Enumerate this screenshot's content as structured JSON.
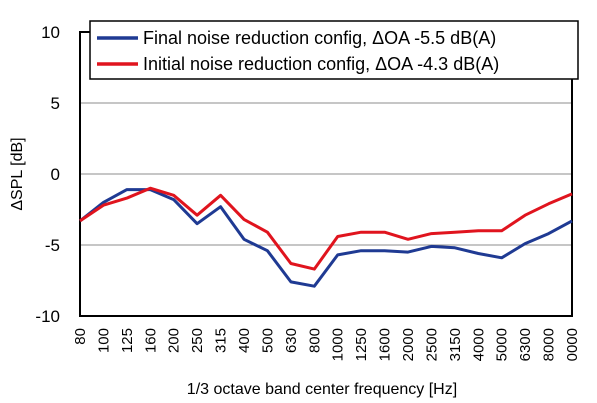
{
  "chart_data": {
    "type": "line",
    "title": "",
    "xlabel": "1/3 octave band center frequency [Hz]",
    "ylabel": "ΔSPL [dB]",
    "ylim": [
      -10,
      10
    ],
    "yticks": [
      -10,
      -5,
      0,
      5,
      10
    ],
    "ytick_labels": [
      "-10",
      "-5",
      "0",
      "5",
      "10"
    ],
    "grid": "horizontal",
    "legend_position": "top-right",
    "categories": [
      "80",
      "100",
      "125",
      "160",
      "200",
      "250",
      "315",
      "400",
      "500",
      "630",
      "800",
      "1000",
      "1250",
      "1600",
      "2000",
      "2500",
      "3150",
      "4000",
      "5000",
      "6300",
      "8000",
      "0000"
    ],
    "series": [
      {
        "name": "Final noise reduction config, ΔOA -5.5 dB(A)",
        "color": "#1f3a93",
        "values": [
          -3.3,
          -2.0,
          -1.1,
          -1.1,
          -1.8,
          -3.5,
          -2.3,
          -4.6,
          -5.4,
          -7.6,
          -7.9,
          -5.7,
          -5.4,
          -5.4,
          -5.5,
          -5.1,
          -5.2,
          -5.6,
          -5.9,
          -4.9,
          -4.2,
          -3.3
        ]
      },
      {
        "name": "Initial noise reduction config, ΔOA -4.3 dB(A)",
        "color": "#e0141e",
        "values": [
          -3.3,
          -2.2,
          -1.7,
          -1.0,
          -1.5,
          -2.9,
          -1.5,
          -3.2,
          -4.1,
          -6.3,
          -6.7,
          -4.4,
          -4.1,
          -4.1,
          -4.6,
          -4.2,
          -4.1,
          -4.0,
          -4.0,
          -2.9,
          -2.1,
          -1.4
        ]
      }
    ]
  }
}
